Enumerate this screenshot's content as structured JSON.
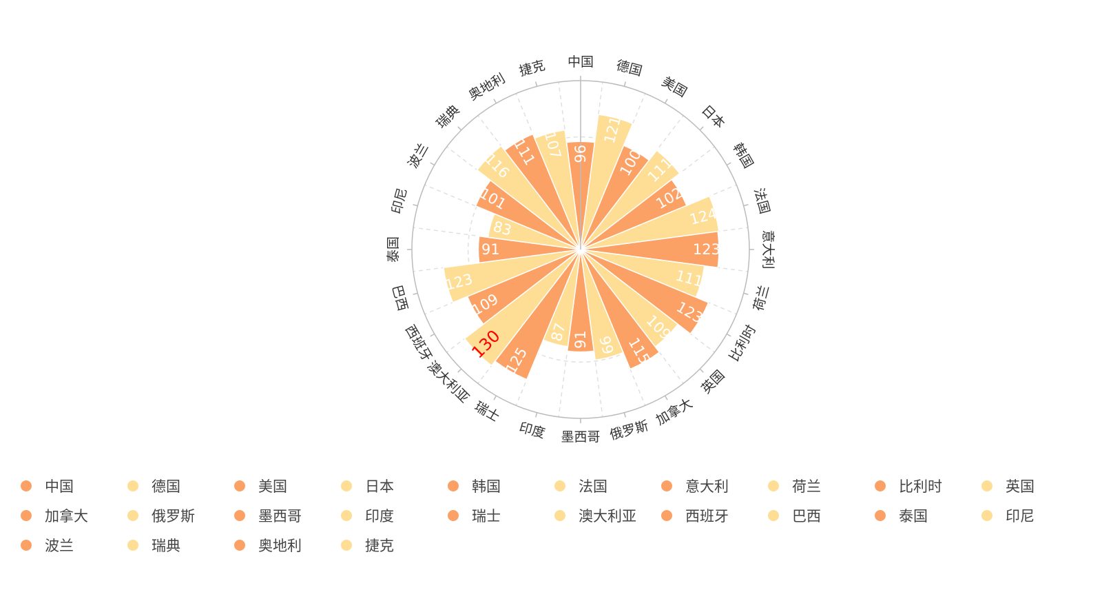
{
  "chart_data": {
    "type": "bar",
    "polar": true,
    "categories": [
      "中国",
      "德国",
      "美国",
      "日本",
      "韩国",
      "法国",
      "意大利",
      "荷兰",
      "比利时",
      "英国",
      "加拿大",
      "俄罗斯",
      "墨西哥",
      "印度",
      "瑞士",
      "澳大利亚",
      "西班牙",
      "巴西",
      "泰国",
      "印尼",
      "波兰",
      "瑞典",
      "奥地利",
      "捷克"
    ],
    "values": [
      96,
      121,
      100,
      111,
      102,
      124,
      123,
      111,
      123,
      109,
      115,
      99,
      91,
      87,
      125,
      130,
      109,
      123,
      91,
      83,
      101,
      116,
      111,
      107
    ],
    "data_labels": [
      "96",
      "121",
      "100",
      "111",
      "102",
      "124",
      "123",
      "111",
      "123",
      "109",
      "115",
      "99",
      "91",
      "87",
      "125",
      "130",
      "109",
      "123",
      "91",
      "83",
      "101",
      "116",
      "111",
      "107"
    ],
    "highlight": {
      "category": "澳大利亚",
      "label_color": "#ff0000"
    },
    "radial_range": [
      0,
      150
    ],
    "grid": true,
    "legend_position": "bottom",
    "colors": {
      "odd": "#fca166",
      "even": "#fede95",
      "highlight_text": "#ff0000",
      "axis": "#bbbbbb",
      "grid": "#e0e0e0"
    }
  }
}
